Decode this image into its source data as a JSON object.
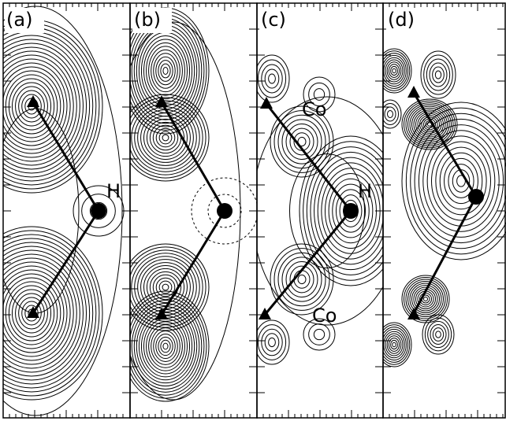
{
  "panels": [
    {
      "label": "(a)",
      "atom_labels": [
        "H"
      ]
    },
    {
      "label": "(b)"
    },
    {
      "label": "(c)",
      "atom_labels": [
        "H",
        "Co",
        "Co"
      ]
    },
    {
      "label": "(d)"
    }
  ]
}
